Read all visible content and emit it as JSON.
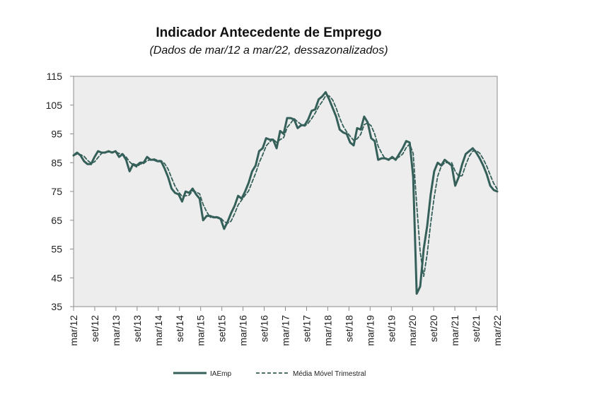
{
  "chart_data": {
    "type": "line",
    "title": "Indicador Antecedente de Emprego",
    "subtitle": "(Dados de mar/12 a mar/22, dessazonalizados)",
    "x_tick_labels": [
      "mar/12",
      "set/12",
      "mar/13",
      "set/13",
      "mar/14",
      "set/14",
      "mar/15",
      "set/15",
      "mar/16",
      "set/16",
      "mar/17",
      "set/17",
      "mar/18",
      "set/18",
      "mar/19",
      "set/19",
      "mar/20",
      "set/20",
      "mar/21",
      "set/21",
      "mar/22"
    ],
    "y_ticks": [
      35,
      45,
      55,
      65,
      75,
      85,
      95,
      105,
      115
    ],
    "ylim": [
      35,
      115
    ],
    "grid": false,
    "legend": "bottom",
    "colors": {
      "line": "#35605A",
      "plot_bg": "#EDEDED",
      "axis": "#8C8C8C"
    },
    "series": [
      {
        "name": "IAEmp",
        "style": "solid",
        "values": [
          87.5,
          88.5,
          87.5,
          85.5,
          84.5,
          84.5,
          87.0,
          89.0,
          88.5,
          88.5,
          89.0,
          88.5,
          89.0,
          87.0,
          88.0,
          86.0,
          82.0,
          84.5,
          84.0,
          85.0,
          85.0,
          87.0,
          86.0,
          86.0,
          85.5,
          85.5,
          83.0,
          80.0,
          76.0,
          74.5,
          74.0,
          71.5,
          75.0,
          74.5,
          76.0,
          74.0,
          72.5,
          65.0,
          66.5,
          66.5,
          66.0,
          66.0,
          65.5,
          62.0,
          64.5,
          67.5,
          70.0,
          73.5,
          72.5,
          75.0,
          78.0,
          82.0,
          84.0,
          89.0,
          90.0,
          93.5,
          93.0,
          93.0,
          90.0,
          96.0,
          95.0,
          100.5,
          100.5,
          100.0,
          97.0,
          98.0,
          98.0,
          100.0,
          103.0,
          103.5,
          107.0,
          108.0,
          109.5,
          107.0,
          104.0,
          101.0,
          96.5,
          95.5,
          95.0,
          92.0,
          91.0,
          97.0,
          96.5,
          101.0,
          99.0,
          93.5,
          92.5,
          86.0,
          86.5,
          86.5,
          86.0,
          87.0,
          86.0,
          88.0,
          90.0,
          92.5,
          92.0,
          80.0,
          39.5,
          42.0,
          55.0,
          63.0,
          74.0,
          82.0,
          85.0,
          84.0,
          86.0,
          85.0,
          84.0,
          77.0,
          80.0,
          84.5,
          88.0,
          89.0,
          90.0,
          88.5,
          86.5,
          84.0,
          81.0,
          77.0,
          75.5,
          75.0
        ]
      },
      {
        "name": "Média Móvel Trimestral",
        "style": "dashed",
        "values": [
          87.5,
          88.0,
          87.8,
          87.2,
          85.8,
          84.8,
          85.3,
          86.8,
          88.2,
          88.7,
          88.7,
          88.7,
          88.8,
          88.2,
          88.0,
          87.0,
          85.3,
          84.2,
          83.5,
          84.5,
          84.7,
          85.7,
          86.0,
          86.3,
          85.8,
          85.7,
          84.7,
          82.8,
          79.7,
          76.8,
          74.8,
          73.3,
          73.5,
          73.7,
          75.2,
          74.8,
          74.2,
          70.5,
          68.0,
          66.0,
          66.3,
          66.2,
          65.8,
          64.5,
          64.0,
          64.7,
          67.3,
          70.3,
          72.0,
          73.7,
          75.2,
          78.3,
          81.3,
          85.0,
          87.7,
          90.8,
          92.2,
          93.2,
          92.0,
          93.0,
          93.7,
          97.2,
          98.7,
          100.3,
          99.2,
          98.3,
          97.7,
          98.7,
          100.3,
          102.2,
          104.5,
          106.2,
          108.2,
          108.2,
          106.8,
          104.0,
          100.5,
          97.7,
          95.7,
          94.2,
          92.7,
          93.3,
          94.8,
          98.2,
          98.8,
          97.8,
          95.0,
          90.7,
          88.3,
          86.3,
          86.3,
          86.5,
          86.3,
          87.0,
          88.0,
          90.2,
          91.5,
          88.2,
          70.5,
          54.0,
          45.5,
          53.3,
          64.0,
          73.0,
          80.3,
          83.7,
          85.0,
          85.0,
          85.0,
          82.0,
          80.3,
          80.5,
          84.2,
          87.2,
          89.0,
          89.2,
          88.3,
          86.3,
          83.8,
          80.7,
          77.8,
          75.8
        ]
      }
    ]
  }
}
